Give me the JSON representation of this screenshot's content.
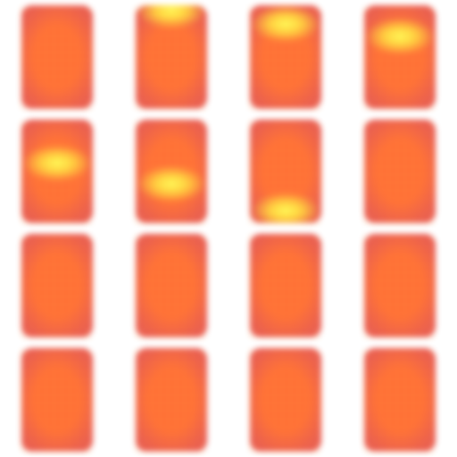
{
  "sprite_sheet": {
    "columns": 4,
    "rows": 4,
    "colors": {
      "body_edge": "#e8554c",
      "body_core": "#ff6a30",
      "glow_core": "#ffff55",
      "glow_mid": "#ffd23a",
      "background": "#ffffff"
    },
    "frames": [
      {
        "glow_band": null
      },
      {
        "glow_band": 0.05
      },
      {
        "glow_band": 0.18
      },
      {
        "glow_band": 0.3
      },
      {
        "glow_band": 0.42
      },
      {
        "glow_band": 0.62
      },
      {
        "glow_band": 0.88
      },
      {
        "glow_band": null
      },
      {
        "glow_band": null
      },
      {
        "glow_band": null
      },
      {
        "glow_band": null
      },
      {
        "glow_band": null
      },
      {
        "glow_band": null
      },
      {
        "glow_band": null
      },
      {
        "glow_band": null
      },
      {
        "glow_band": null
      }
    ]
  }
}
